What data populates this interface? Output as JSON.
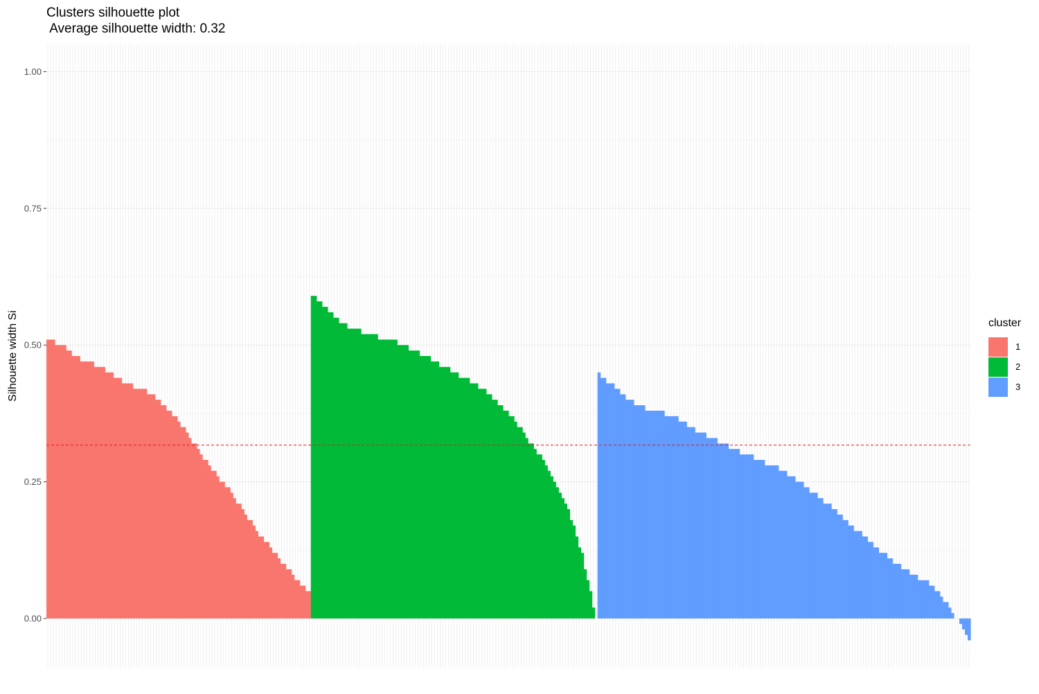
{
  "chart_data": {
    "type": "bar",
    "title": "Clusters silhouette plot",
    "subtitle": " Average silhouette width: 0.32",
    "xlabel": "",
    "ylabel": "Silhouette width Si",
    "ylim": [
      -0.09,
      1.05
    ],
    "yticks": [
      "0.00",
      "0.25",
      "0.50",
      "0.75",
      "1.00"
    ],
    "average_line": 0.317,
    "grid": true,
    "legend": {
      "title": "cluster",
      "placement": "right"
    },
    "series": [
      {
        "name": "1",
        "color": "#F8766D",
        "count": 95,
        "profile": [
          [
            0,
            0.51
          ],
          [
            0.06,
            0.5
          ],
          [
            0.1,
            0.48
          ],
          [
            0.2,
            0.46
          ],
          [
            0.3,
            0.43
          ],
          [
            0.4,
            0.41
          ],
          [
            0.5,
            0.36
          ],
          [
            0.6,
            0.29
          ],
          [
            0.7,
            0.23
          ],
          [
            0.8,
            0.16
          ],
          [
            0.9,
            0.1
          ],
          [
            1,
            0.045
          ]
        ]
      },
      {
        "name": "2",
        "color": "#00BA38",
        "count": 103,
        "profile": [
          [
            0,
            0.59
          ],
          [
            0.05,
            0.57
          ],
          [
            0.1,
            0.54
          ],
          [
            0.2,
            0.52
          ],
          [
            0.3,
            0.505
          ],
          [
            0.4,
            0.48
          ],
          [
            0.5,
            0.45
          ],
          [
            0.6,
            0.42
          ],
          [
            0.7,
            0.37
          ],
          [
            0.8,
            0.3
          ],
          [
            0.9,
            0.2
          ],
          [
            0.95,
            0.12
          ],
          [
            1,
            0.0
          ]
        ]
      },
      {
        "name": "3",
        "color": "#619CFF",
        "count": 134,
        "profile": [
          [
            0,
            0.45
          ],
          [
            0.03,
            0.43
          ],
          [
            0.1,
            0.39
          ],
          [
            0.2,
            0.37
          ],
          [
            0.3,
            0.33
          ],
          [
            0.4,
            0.3
          ],
          [
            0.5,
            0.27
          ],
          [
            0.6,
            0.22
          ],
          [
            0.7,
            0.16
          ],
          [
            0.8,
            0.1
          ],
          [
            0.9,
            0.06
          ],
          [
            0.95,
            0.02
          ],
          [
            0.97,
            -0.005
          ],
          [
            1,
            -0.035
          ]
        ]
      }
    ]
  }
}
